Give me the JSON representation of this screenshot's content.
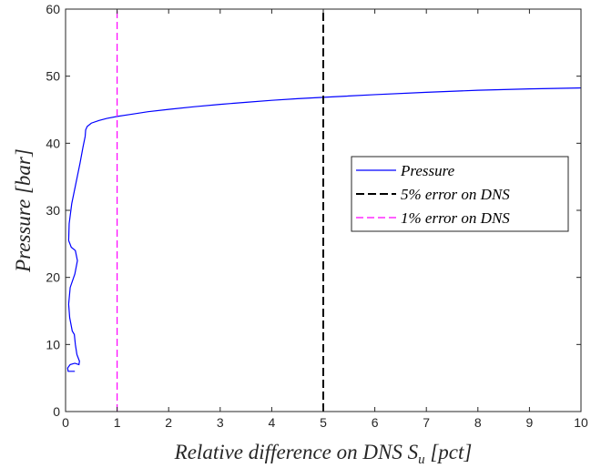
{
  "chart_data": {
    "type": "line",
    "xlabel": "Relative difference on DNS S",
    "xlabel_sub": "u",
    "xlabel_unit": " [pct]",
    "ylabel": "Pressure [bar]",
    "xlim": [
      0,
      10
    ],
    "ylim": [
      0,
      60
    ],
    "xticks": [
      "0",
      "1",
      "2",
      "3",
      "4",
      "5",
      "6",
      "7",
      "8",
      "9",
      "10"
    ],
    "yticks": [
      "0",
      "10",
      "20",
      "30",
      "40",
      "50",
      "60"
    ],
    "grid": false,
    "legend_position": "right-center",
    "series": [
      {
        "name": "Pressure",
        "color": "#0000ff",
        "style": "solid",
        "x": [
          0.18,
          0.05,
          0.04,
          0.09,
          0.18,
          0.26,
          0.27,
          0.22,
          0.19,
          0.17,
          0.13,
          0.08,
          0.06,
          0.09,
          0.18,
          0.23,
          0.19,
          0.11,
          0.06,
          0.07,
          0.12,
          0.2,
          0.28,
          0.34,
          0.38,
          0.39,
          0.42,
          0.5,
          0.65,
          0.8,
          1.0,
          1.3,
          1.6,
          2.0,
          2.5,
          3.0,
          3.5,
          4.0,
          4.5,
          5.0,
          6.0,
          7.0,
          8.0,
          9.0,
          10.0
        ],
        "y": [
          6.0,
          6.0,
          6.5,
          7.0,
          7.2,
          7.0,
          7.5,
          8.5,
          10.0,
          11.5,
          12.0,
          14.0,
          16.0,
          18.5,
          20.5,
          22.5,
          24.0,
          24.5,
          25.5,
          28.0,
          31.0,
          34.0,
          37.0,
          39.5,
          41.0,
          42.0,
          42.5,
          43.0,
          43.4,
          43.7,
          44.0,
          44.35,
          44.7,
          45.05,
          45.45,
          45.8,
          46.1,
          46.4,
          46.65,
          46.85,
          47.25,
          47.6,
          47.9,
          48.1,
          48.25
        ]
      },
      {
        "name": "5% error on DNS",
        "color": "#000000",
        "style": "dashed",
        "x": [
          5,
          5
        ],
        "y": [
          0,
          60
        ]
      },
      {
        "name": "1% error on DNS",
        "color": "#ff00ff",
        "style": "dashed",
        "x": [
          1,
          1
        ],
        "y": [
          0,
          60
        ]
      }
    ],
    "legend": [
      {
        "label": "Pressure",
        "color": "#0000ff",
        "style": "solid"
      },
      {
        "label": "5% error on DNS",
        "color": "#000000",
        "style": "dashed"
      },
      {
        "label": "1% error on DNS",
        "color": "#ff00ff",
        "style": "dashed"
      }
    ]
  }
}
